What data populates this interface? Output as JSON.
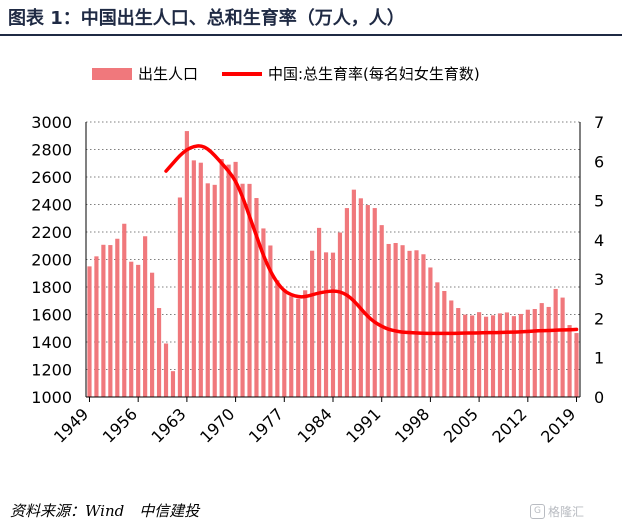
{
  "header": {
    "title": "图表 1：中国出生人口、总和生育率（万人，人）"
  },
  "footer": {
    "source": "资料来源：Wind　中信建投",
    "watermark": "格隆汇",
    "watermark_icon": "G"
  },
  "chart_data": {
    "type": "bar+line",
    "x_ticks": [
      "1949",
      "1956",
      "1963",
      "1970",
      "1977",
      "1984",
      "1991",
      "1998",
      "2005",
      "2012",
      "2019"
    ],
    "left_axis": {
      "min": 1000,
      "max": 3000,
      "step": 200
    },
    "right_axis": {
      "min": 0,
      "max": 7,
      "step": 1
    },
    "bar_color": "#f0787c",
    "line_color": "#ff0000",
    "series": [
      {
        "name": "出生人口",
        "type": "bar",
        "axis": "left",
        "years": [
          1949,
          1950,
          1951,
          1952,
          1953,
          1954,
          1955,
          1956,
          1957,
          1958,
          1959,
          1960,
          1961,
          1962,
          1963,
          1964,
          1965,
          1966,
          1967,
          1968,
          1969,
          1970,
          1971,
          1972,
          1973,
          1974,
          1975,
          1976,
          1977,
          1978,
          1979,
          1980,
          1981,
          1982,
          1983,
          1984,
          1985,
          1986,
          1987,
          1988,
          1989,
          1990,
          1991,
          1992,
          1993,
          1994,
          1995,
          1996,
          1997,
          1998,
          1999,
          2000,
          2001,
          2002,
          2003,
          2004,
          2005,
          2006,
          2007,
          2008,
          2009,
          2010,
          2011,
          2012,
          2013,
          2014,
          2015,
          2016,
          2017,
          2018,
          2019
        ],
        "values": [
          1950,
          2023,
          2107,
          2105,
          2151,
          2260,
          1984,
          1961,
          2169,
          1904,
          1647,
          1389,
          1188,
          2451,
          2934,
          2721,
          2704,
          2554,
          2543,
          2731,
          2690,
          2710,
          2551,
          2550,
          2447,
          2226,
          2102,
          1849,
          1783,
          1733,
          1715,
          1776,
          2064,
          2230,
          2052,
          2050,
          2196,
          2374,
          2508,
          2445,
          2396,
          2374,
          2250,
          2113,
          2120,
          2104,
          2063,
          2067,
          2038,
          1942,
          1834,
          1771,
          1702,
          1647,
          1599,
          1593,
          1617,
          1584,
          1594,
          1608,
          1615,
          1588,
          1604,
          1635,
          1640,
          1683,
          1655,
          1786,
          1723,
          1523,
          1465
        ]
      },
      {
        "name": "中国:总生育率(每名妇女生育数)",
        "type": "line",
        "axis": "right",
        "points": [
          [
            1960,
            5.75
          ],
          [
            1961,
            5.95
          ],
          [
            1962,
            6.15
          ],
          [
            1963,
            6.3
          ],
          [
            1964,
            6.38
          ],
          [
            1965,
            6.4
          ],
          [
            1966,
            6.32
          ],
          [
            1967,
            6.15
          ],
          [
            1968,
            5.95
          ],
          [
            1969,
            5.75
          ],
          [
            1970,
            5.5
          ],
          [
            1971,
            5.1
          ],
          [
            1972,
            4.6
          ],
          [
            1973,
            4.1
          ],
          [
            1974,
            3.6
          ],
          [
            1975,
            3.2
          ],
          [
            1976,
            2.9
          ],
          [
            1977,
            2.7
          ],
          [
            1978,
            2.6
          ],
          [
            1979,
            2.55
          ],
          [
            1980,
            2.55
          ],
          [
            1981,
            2.6
          ],
          [
            1982,
            2.65
          ],
          [
            1983,
            2.68
          ],
          [
            1984,
            2.7
          ],
          [
            1985,
            2.68
          ],
          [
            1986,
            2.6
          ],
          [
            1987,
            2.45
          ],
          [
            1988,
            2.25
          ],
          [
            1989,
            2.05
          ],
          [
            1990,
            1.9
          ],
          [
            1991,
            1.8
          ],
          [
            1992,
            1.72
          ],
          [
            1993,
            1.68
          ],
          [
            1994,
            1.65
          ],
          [
            1995,
            1.64
          ],
          [
            1996,
            1.63
          ],
          [
            1997,
            1.62
          ],
          [
            1998,
            1.62
          ],
          [
            1999,
            1.62
          ],
          [
            2000,
            1.62
          ],
          [
            2001,
            1.62
          ],
          [
            2002,
            1.62
          ],
          [
            2003,
            1.63
          ],
          [
            2004,
            1.63
          ],
          [
            2005,
            1.63
          ],
          [
            2006,
            1.64
          ],
          [
            2007,
            1.64
          ],
          [
            2008,
            1.64
          ],
          [
            2009,
            1.65
          ],
          [
            2010,
            1.65
          ],
          [
            2011,
            1.66
          ],
          [
            2012,
            1.67
          ],
          [
            2013,
            1.68
          ],
          [
            2014,
            1.69
          ],
          [
            2015,
            1.69
          ],
          [
            2016,
            1.7
          ],
          [
            2017,
            1.71
          ],
          [
            2018,
            1.71
          ],
          [
            2019,
            1.72
          ]
        ]
      }
    ],
    "legend_position": "top",
    "grid": true
  }
}
